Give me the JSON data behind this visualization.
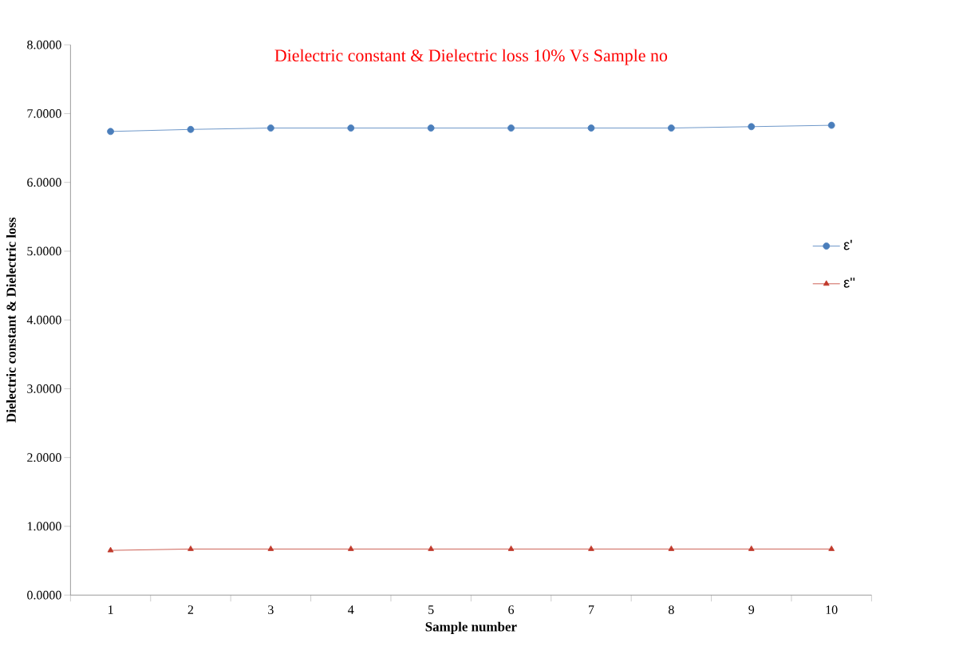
{
  "chart_data": {
    "type": "line",
    "title": "Dielectric  constant & Dielectric  loss 10% Vs  Sample no",
    "xlabel": "Sample  number",
    "ylabel": "Dielectric constant & Dielectric loss",
    "categories": [
      "1",
      "2",
      "3",
      "4",
      "5",
      "6",
      "7",
      "8",
      "9",
      "10"
    ],
    "series": [
      {
        "name": "ε'",
        "color": "#4a7ebb",
        "marker": "circle",
        "values": [
          6.74,
          6.77,
          6.79,
          6.79,
          6.79,
          6.79,
          6.79,
          6.79,
          6.81,
          6.83
        ]
      },
      {
        "name": "ε''",
        "color": "#c0392b",
        "marker": "triangle",
        "values": [
          0.65,
          0.67,
          0.67,
          0.67,
          0.67,
          0.67,
          0.67,
          0.67,
          0.67,
          0.67
        ]
      }
    ],
    "ylim": [
      0,
      8
    ],
    "yticks": [
      {
        "value": 0,
        "label": "0.0000"
      },
      {
        "value": 1,
        "label": "1.0000"
      },
      {
        "value": 2,
        "label": "2.0000"
      },
      {
        "value": 3,
        "label": "3.0000"
      },
      {
        "value": 4,
        "label": "4.0000"
      },
      {
        "value": 5,
        "label": "5.0000"
      },
      {
        "value": 6,
        "label": "6.0000"
      },
      {
        "value": 7,
        "label": "7.0000"
      },
      {
        "value": 8,
        "label": "8.0000"
      }
    ],
    "grid": false,
    "legend": "right",
    "line_style": "solid"
  }
}
